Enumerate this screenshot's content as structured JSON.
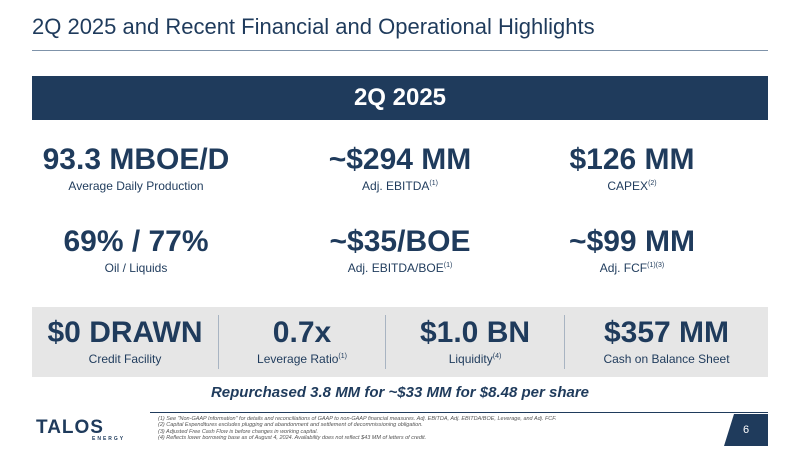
{
  "header": {
    "title": "2Q 2025 and Recent Financial and Operational Highlights"
  },
  "banner": {
    "label": "2Q 2025"
  },
  "metrics": [
    {
      "value": "93.3 MBOE/D",
      "label": "Average Daily Production",
      "sup": ""
    },
    {
      "value": "~$294 MM",
      "label": "Adj. EBITDA",
      "sup": "(1)"
    },
    {
      "value": "$126 MM",
      "label": "CAPEX",
      "sup": "(2)"
    },
    {
      "value": "69% / 77%",
      "label": "Oil / Liquids",
      "sup": ""
    },
    {
      "value": "~$35/BOE",
      "label": "Adj. EBITDA/BOE",
      "sup": "(1)"
    },
    {
      "value": "~$99 MM",
      "label": "Adj. FCF",
      "sup": "(1)(3)"
    }
  ],
  "strip": [
    {
      "value": "$0 DRAWN",
      "label": "Credit Facility",
      "sup": ""
    },
    {
      "value": "0.7x",
      "label": "Leverage Ratio",
      "sup": "(1)"
    },
    {
      "value": "$1.0 BN",
      "label": "Liquidity",
      "sup": "(4)"
    },
    {
      "value": "$357 MM",
      "label": "Cash on Balance Sheet",
      "sup": ""
    }
  ],
  "repurchase": "Repurchased 3.8 MM for ~$33 MM for $8.48 per share",
  "footer": {
    "logo": "TALOS",
    "logo_sub": "ENERGY",
    "footnotes": [
      "(1)  See \"Non-GAAP Information\" for details and reconciliations of GAAP to non-GAAP financial measures. Adj. EBITDA, Adj. EBITDA/BOE, Leverage, and Adj. FCF.",
      "(2)  Capital Expenditures excludes plugging and abandonment and settlement of decommissioning obligation.",
      "(3)  Adjusted Free Cash Flow is before changes in working capital.",
      "(4)  Reflects lower borrowing base as of August 4, 2024. Availability does not reflect $43 MM of letters of credit."
    ],
    "page_number": "6"
  },
  "colors": {
    "navy": "#1f3b5c",
    "strip_bg": "#e6e6e6"
  }
}
